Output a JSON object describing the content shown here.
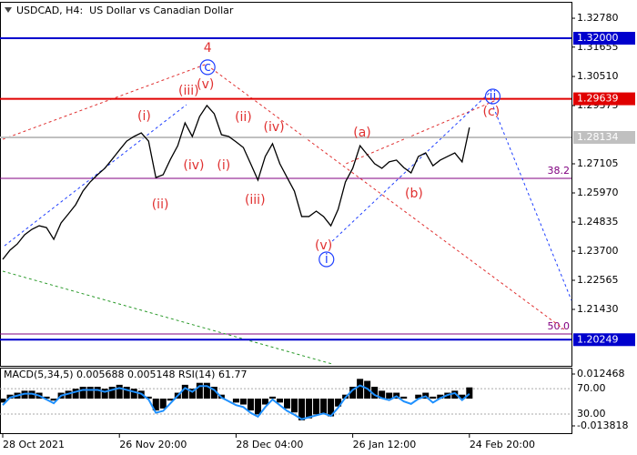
{
  "chart_data": [
    {
      "type": "line",
      "title": "USDCAD, H4:  US Dollar vs Canadian Dollar",
      "color": "#000000",
      "values": [
        1.2338,
        1.2374,
        1.2398,
        1.2434,
        1.2455,
        1.2469,
        1.2462,
        1.2416,
        1.248,
        1.2515,
        1.2551,
        1.2604,
        1.264,
        1.2668,
        1.2693,
        1.2728,
        1.2764,
        1.2799,
        1.2817,
        1.2831,
        1.2799,
        1.2657,
        1.2668,
        1.2728,
        1.2781,
        1.287,
        1.2817,
        1.2895,
        1.2938,
        1.2906,
        1.2824,
        1.2817,
        1.2796,
        1.2774,
        1.2711,
        1.2647,
        1.2739,
        1.2789,
        1.2711,
        1.2657,
        1.2604,
        1.2505,
        1.2505,
        1.2526,
        1.2505,
        1.2469,
        1.2533,
        1.264,
        1.2693,
        1.2781,
        1.2746,
        1.2711,
        1.2693,
        1.2718,
        1.2725,
        1.2696,
        1.2675,
        1.2739,
        1.2753,
        1.2703,
        1.2725,
        1.2739,
        1.2753,
        1.2718,
        1.2852
      ],
      "xlim": [
        0,
        78
      ],
      "xticks": [
        {
          "value": 0,
          "label": "28 Oct 2021"
        },
        {
          "value": 16,
          "label": "26 Nov 20:00"
        },
        {
          "value": 32,
          "label": "28 Dec 04:00"
        },
        {
          "value": 48,
          "label": "26 Jan 12:00"
        },
        {
          "value": 64,
          "label": "24 Feb 20:00"
        }
      ],
      "ylim": [
        1.1923,
        1.3342
      ],
      "yticks": [
        {
          "value": 1.3278,
          "label": "1.32780"
        },
        {
          "value": 1.31655,
          "label": "1.31655"
        },
        {
          "value": 1.3051,
          "label": "1.30510"
        },
        {
          "value": 1.29375,
          "label": "1.29375"
        },
        {
          "value": 1.27105,
          "label": "1.27105"
        },
        {
          "value": 1.2597,
          "label": "1.25970"
        },
        {
          "value": 1.24835,
          "label": "1.24835"
        },
        {
          "value": 1.237,
          "label": "1.23700"
        },
        {
          "value": 1.22565,
          "label": "1.22565"
        },
        {
          "value": 1.2143,
          "label": "1.21430"
        }
      ],
      "levels": {
        "values": [
          1.32,
          1.29639,
          1.28134,
          1.20249
        ],
        "value_labels": [
          "1.32000",
          "1.29639",
          "1.28134",
          "1.20249"
        ],
        "colors": [
          "#0000cd",
          "#e00000",
          "#c0c0c0",
          "#0000cd"
        ]
      },
      "fib_levels": {
        "values": [
          1.2654,
          1.2047
        ],
        "labels": [
          "38.2",
          "50.0"
        ],
        "color": "#800080"
      },
      "trend_lines": [
        {
          "color": "#e03030",
          "x": [
            0,
            28.1
          ],
          "y": [
            1.2806,
            1.3101
          ]
        },
        {
          "color": "#e03030",
          "x": [
            28.6,
            77
          ],
          "y": [
            1.3083,
            1.2065
          ]
        },
        {
          "color": "#e03030",
          "x": [
            47.1,
            67.7
          ],
          "y": [
            1.2711,
            1.2959
          ]
        },
        {
          "color": "#1f3fff",
          "x": [
            0.25,
            25.2
          ],
          "y": [
            1.2391,
            1.2941
          ]
        },
        {
          "color": "#1f3fff",
          "x": [
            45.2,
            67
          ],
          "y": [
            1.2409,
            1.2994
          ]
        },
        {
          "color": "#1f3fff",
          "x": [
            67,
            78
          ],
          "y": [
            1.2952,
            1.2178
          ]
        },
        {
          "color": "#2a9a2a",
          "x": [
            0,
            45.2
          ],
          "y": [
            1.2292,
            1.193
          ]
        }
      ],
      "annotations": [
        {
          "text": "4",
          "x": 28.1,
          "y": 1.3161,
          "color": "#e03030"
        },
        {
          "text": "c",
          "x": 28.1,
          "y": 1.3087,
          "color": "#1f3fff",
          "circled": true
        },
        {
          "text": "(iii)",
          "x": 25.5,
          "y": 1.2994,
          "color": "#e03030"
        },
        {
          "text": "(v)",
          "x": 27.8,
          "y": 1.3019,
          "color": "#e03030"
        },
        {
          "text": "(i)",
          "x": 19.4,
          "y": 1.2895,
          "color": "#e03030"
        },
        {
          "text": "(ii)",
          "x": 21.6,
          "y": 1.2551,
          "color": "#e03030"
        },
        {
          "text": "(iv)",
          "x": 26.2,
          "y": 1.2703,
          "color": "#e03030"
        },
        {
          "text": "(i)",
          "x": 30.3,
          "y": 1.2703,
          "color": "#e03030"
        },
        {
          "text": "(ii)",
          "x": 33,
          "y": 1.2891,
          "color": "#e03030"
        },
        {
          "text": "(iii)",
          "x": 34.6,
          "y": 1.2569,
          "color": "#e03030"
        },
        {
          "text": "(iv)",
          "x": 37.2,
          "y": 1.2852,
          "color": "#e03030"
        },
        {
          "text": "(v)",
          "x": 44,
          "y": 1.2391,
          "color": "#e03030"
        },
        {
          "text": "i",
          "x": 44.4,
          "y": 1.2338,
          "color": "#1f3fff",
          "circled": true
        },
        {
          "text": "(a)",
          "x": 49.3,
          "y": 1.2831,
          "color": "#e03030"
        },
        {
          "text": "(b)",
          "x": 56.4,
          "y": 1.2594,
          "color": "#e03030"
        },
        {
          "text": "(c)",
          "x": 67,
          "y": 1.2913,
          "color": "#e03030"
        },
        {
          "text": "ii",
          "x": 67.2,
          "y": 1.2973,
          "color": "#1f3fff",
          "circled": true
        }
      ]
    },
    {
      "type": "macd",
      "title": "MACD(5,34,5) 0.005688 0.005148 RSI(14) 61.77",
      "xlim": [
        0,
        78
      ],
      "ylim": [
        -0.01751,
        0.0157
      ],
      "yticks": [
        0.012468,
        -0.013818
      ],
      "y2lim": [
        0,
        103
      ],
      "y2ticks": [
        {
          "value": 70,
          "label": "70.00"
        },
        {
          "value": 30,
          "label": "30.00"
        }
      ],
      "series": [
        {
          "color": "#000000",
          "values": [
            -0.002,
            0.002,
            0.003,
            0.004,
            0.004,
            0.003,
            0.001,
            -0.001,
            0.003,
            0.004,
            0.005,
            0.006,
            0.006,
            0.006,
            0.005,
            0.006,
            0.007,
            0.006,
            0.005,
            0.004,
            0.001,
            -0.006,
            -0.005,
            -0.001,
            0.003,
            0.007,
            0.005,
            0.008,
            0.008,
            0.006,
            0.002,
            0,
            -0.002,
            -0.003,
            -0.006,
            -0.008,
            -0.003,
            0.001,
            -0.002,
            -0.005,
            -0.007,
            -0.011,
            -0.01,
            -0.008,
            -0.008,
            -0.009,
            -0.004,
            0.002,
            0.006,
            0.01,
            0.009,
            0.006,
            0.004,
            0.003,
            0.003,
            0.001,
            0,
            0.002,
            0.003,
            0.001,
            0.002,
            0.003,
            0.004,
            0.002,
            0.005688
          ]
        },
        {
          "color": "#1e90ff",
          "axis": "y2",
          "values": [
            44,
            56,
            59,
            62,
            62,
            59,
            53,
            47,
            59,
            62,
            65,
            68,
            68,
            68,
            65,
            68,
            71,
            68,
            65,
            62,
            53,
            32,
            35,
            47,
            59,
            71,
            65,
            74,
            74,
            68,
            56,
            50,
            44,
            41,
            32,
            26,
            41,
            53,
            44,
            35,
            29,
            22,
            25,
            28,
            31,
            27,
            40,
            56,
            68,
            75,
            70,
            60,
            55,
            52,
            58,
            50,
            46,
            54,
            58,
            48,
            55,
            60,
            63,
            52,
            61.77
          ]
        }
      ]
    }
  ]
}
